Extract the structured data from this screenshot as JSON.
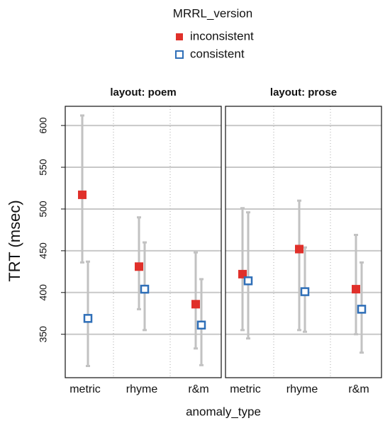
{
  "chart_data": {
    "type": "errorbar",
    "legend_title": "MRRL_version",
    "y_label": "TRT (msec)",
    "x_label": "anomaly_type",
    "ylim": [
      298,
      623
    ],
    "yticks": [
      350,
      400,
      450,
      500,
      550,
      600
    ],
    "grid": true,
    "categories": [
      "metric",
      "rhyme",
      "r&m"
    ],
    "panels": [
      {
        "title": "layout: poem",
        "series": [
          {
            "name": "inconsistent",
            "color": "#e0302a",
            "fill": true,
            "values": [
              517,
              431,
              386
            ],
            "lower": [
              436,
              380,
              333
            ],
            "upper": [
              612,
              490,
              448
            ]
          },
          {
            "name": "consistent",
            "color": "#2f6fb8",
            "fill": false,
            "values": [
              369,
              404,
              361
            ],
            "lower": [
              312,
              355,
              313
            ],
            "upper": [
              437,
              460,
              416
            ]
          }
        ]
      },
      {
        "title": "layout: prose",
        "series": [
          {
            "name": "inconsistent",
            "color": "#e0302a",
            "fill": true,
            "values": [
              422,
              452,
              404
            ],
            "lower": [
              355,
              355,
              350
            ],
            "upper": [
              501,
              510,
              469
            ]
          },
          {
            "name": "consistent",
            "color": "#2f6fb8",
            "fill": false,
            "values": [
              414,
              401,
              380
            ],
            "lower": [
              345,
              353,
              328
            ],
            "upper": [
              496,
              454,
              436
            ]
          }
        ]
      }
    ]
  }
}
